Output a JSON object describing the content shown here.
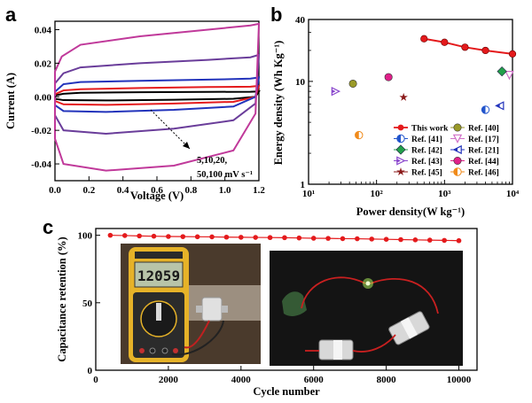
{
  "panels": {
    "a": "a",
    "b": "b",
    "c": "c"
  },
  "chart_data": [
    {
      "id": "a",
      "type": "line",
      "xlabel": "Voltage (V)",
      "ylabel": "Current (A)",
      "xlim": [
        0.0,
        1.2
      ],
      "ylim": [
        -0.05,
        0.045
      ],
      "xticks": [
        "0.0",
        "0.2",
        "0.4",
        "0.6",
        "0.8",
        "1.0",
        "1.2"
      ],
      "yticks": [
        "-0.04",
        "-0.02",
        "0.00",
        "0.02",
        "0.04"
      ],
      "annotation": [
        "5,10,20,",
        "50,100 mV s⁻¹"
      ],
      "series": [
        {
          "scan_rate": 5,
          "color": "#000000",
          "upper": [
            [
              0.0,
              0.0008
            ],
            [
              0.05,
              0.0018
            ],
            [
              0.15,
              0.0024
            ],
            [
              0.5,
              0.0027
            ],
            [
              0.9,
              0.0029
            ],
            [
              1.15,
              0.003
            ],
            [
              1.2,
              0.0032
            ]
          ],
          "lower": [
            [
              0.0,
              -0.0012
            ],
            [
              0.05,
              -0.002
            ],
            [
              0.3,
              -0.0022
            ],
            [
              0.7,
              -0.0018
            ],
            [
              1.05,
              -0.0012
            ],
            [
              1.18,
              0.0
            ],
            [
              1.2,
              0.0032
            ]
          ]
        },
        {
          "scan_rate": 10,
          "color": "#e41a1c",
          "upper": [
            [
              0.0,
              0.0015
            ],
            [
              0.05,
              0.0038
            ],
            [
              0.15,
              0.0045
            ],
            [
              0.5,
              0.0052
            ],
            [
              0.9,
              0.0058
            ],
            [
              1.15,
              0.006
            ],
            [
              1.2,
              0.0065
            ]
          ],
          "lower": [
            [
              0.0,
              -0.0025
            ],
            [
              0.05,
              -0.0045
            ],
            [
              0.3,
              -0.0048
            ],
            [
              0.7,
              -0.004
            ],
            [
              1.05,
              -0.003
            ],
            [
              1.18,
              0.0
            ],
            [
              1.2,
              0.0065
            ]
          ]
        },
        {
          "scan_rate": 20,
          "color": "#2233bb",
          "upper": [
            [
              0.0,
              0.003
            ],
            [
              0.05,
              0.0075
            ],
            [
              0.15,
              0.0088
            ],
            [
              0.5,
              0.0095
            ],
            [
              0.9,
              0.0102
            ],
            [
              1.15,
              0.0108
            ],
            [
              1.2,
              0.0115
            ]
          ],
          "lower": [
            [
              0.0,
              -0.005
            ],
            [
              0.05,
              -0.0085
            ],
            [
              0.3,
              -0.009
            ],
            [
              0.7,
              -0.0078
            ],
            [
              1.05,
              -0.0058
            ],
            [
              1.18,
              0.0
            ],
            [
              1.2,
              0.0115
            ]
          ]
        },
        {
          "scan_rate": 50,
          "color": "#6a3d9a",
          "upper": [
            [
              0.0,
              0.008
            ],
            [
              0.05,
              0.014
            ],
            [
              0.15,
              0.0175
            ],
            [
              0.5,
              0.02
            ],
            [
              0.9,
              0.022
            ],
            [
              1.15,
              0.0235
            ],
            [
              1.2,
              0.025
            ]
          ],
          "lower": [
            [
              0.0,
              -0.011
            ],
            [
              0.05,
              -0.02
            ],
            [
              0.3,
              -0.022
            ],
            [
              0.7,
              -0.019
            ],
            [
              1.05,
              -0.014
            ],
            [
              1.18,
              -0.004
            ],
            [
              1.2,
              0.025
            ]
          ]
        },
        {
          "scan_rate": 100,
          "color": "#c0399a",
          "upper": [
            [
              0.0,
              0.015
            ],
            [
              0.04,
              0.024
            ],
            [
              0.15,
              0.031
            ],
            [
              0.5,
              0.036
            ],
            [
              0.9,
              0.04
            ],
            [
              1.15,
              0.0425
            ],
            [
              1.2,
              0.0435
            ]
          ],
          "lower": [
            [
              0.0,
              -0.025
            ],
            [
              0.05,
              -0.04
            ],
            [
              0.3,
              -0.044
            ],
            [
              0.7,
              -0.041
            ],
            [
              1.05,
              -0.032
            ],
            [
              1.18,
              -0.01
            ],
            [
              1.2,
              0.0435
            ]
          ]
        }
      ]
    },
    {
      "id": "b",
      "type": "scatter",
      "xlabel": "Power density(W kg⁻¹)",
      "ylabel": "Energy density (Wh Kg⁻¹)",
      "x_scale": "log",
      "y_scale": "log",
      "xlim": [
        10,
        10000
      ],
      "ylim": [
        1,
        40
      ],
      "xticks": [
        {
          "v": 10,
          "label": "10¹"
        },
        {
          "v": 100,
          "label": "10²"
        },
        {
          "v": 1000,
          "label": "10³"
        },
        {
          "v": 10000,
          "label": "10⁴"
        }
      ],
      "yticks": [
        {
          "v": 1,
          "label": "1"
        },
        {
          "v": 10,
          "label": "10"
        },
        {
          "v": 40,
          "label": "40"
        }
      ],
      "this_work": {
        "label": "This work",
        "color": "#e41a1c",
        "points": [
          [
            500,
            26
          ],
          [
            1000,
            24
          ],
          [
            2000,
            21.5
          ],
          [
            4000,
            20
          ],
          [
            10000,
            18.5
          ]
        ]
      },
      "refs": [
        {
          "label": "Ref. [40]",
          "x": 45,
          "y": 9.5,
          "marker": "circle",
          "color": "#9a9a28"
        },
        {
          "label": "Ref. [41]",
          "x": 4000,
          "y": 5.3,
          "marker": "half-circle",
          "color": "#2255cc"
        },
        {
          "label": "Ref. [17]",
          "x": 9000,
          "y": 11.5,
          "marker": "triangle-down",
          "color": "#d070c8"
        },
        {
          "label": "Ref. [42]",
          "x": 7000,
          "y": 12.5,
          "marker": "diamond",
          "color": "#22a04a"
        },
        {
          "label": "Ref. [21]",
          "x": 6500,
          "y": 5.8,
          "marker": "triangle-left",
          "color": "#2233bb"
        },
        {
          "label": "Ref. [43]",
          "x": 25,
          "y": 8,
          "marker": "triangle-right",
          "color": "#8844cc"
        },
        {
          "label": "Ref. [44]",
          "x": 150,
          "y": 11,
          "marker": "circle",
          "color": "#e0208a"
        },
        {
          "label": "Ref. [45]",
          "x": 250,
          "y": 7,
          "marker": "star",
          "color": "#8b1a1a"
        },
        {
          "label": "Ref. [46]",
          "x": 55,
          "y": 3,
          "marker": "half-circle",
          "color": "#f08a1a"
        }
      ]
    },
    {
      "id": "c",
      "type": "line",
      "xlabel": "Cycle number",
      "ylabel": "Capacitance retention (%)",
      "xlim": [
        0,
        10500
      ],
      "ylim": [
        0,
        105
      ],
      "xticks": [
        0,
        2000,
        4000,
        6000,
        8000,
        10000
      ],
      "yticks": [
        0,
        50,
        100
      ],
      "series": [
        {
          "color": "#e41a1c",
          "x": [
            400,
            800,
            1200,
            1600,
            2000,
            2400,
            2800,
            3200,
            3600,
            4000,
            4400,
            4800,
            5200,
            5600,
            6000,
            6400,
            6800,
            7200,
            7600,
            8000,
            8400,
            8800,
            9200,
            9600,
            10000
          ],
          "values": [
            100,
            99.8,
            99.5,
            99.3,
            99.1,
            99.0,
            98.9,
            98.8,
            98.6,
            98.5,
            98.4,
            98.3,
            98.2,
            98.0,
            97.8,
            97.7,
            97.5,
            97.4,
            97.2,
            97.0,
            96.8,
            96.6,
            96.4,
            96.2,
            96.0
          ]
        }
      ]
    }
  ],
  "inset_photos": [
    {
      "name": "multimeter-photo",
      "reading": "12059"
    },
    {
      "name": "led-photo"
    }
  ]
}
